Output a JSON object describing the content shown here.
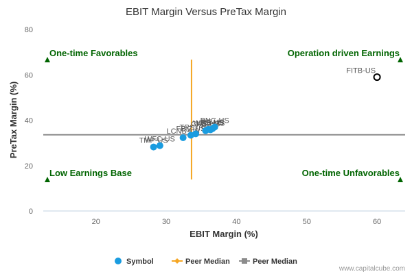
{
  "chart_data": {
    "type": "scatter",
    "title": "EBIT Margin Versus PreTax Margin",
    "xlabel": "EBIT Margin (%)",
    "ylabel": "PreTax Margin (%)",
    "xlim": [
      12.5,
      64
    ],
    "ylim": [
      0,
      80
    ],
    "xticks": [
      20,
      30,
      40,
      50,
      60
    ],
    "yticks": [
      0,
      20,
      40,
      60,
      80
    ],
    "grid": false,
    "points": [
      {
        "label": "TMP-US",
        "x": 28.2,
        "y": 28.2,
        "color": "#1a9ce0"
      },
      {
        "label": "WFC-US",
        "x": 29.1,
        "y": 28.8,
        "color": "#1a9ce0"
      },
      {
        "label": "LCNB-US",
        "x": 32.4,
        "y": 32.3,
        "color": "#1a9ce0"
      },
      {
        "label": "FBIZ-US",
        "x": 33.5,
        "y": 33.4,
        "color": "#1a9ce0"
      },
      {
        "label": "TRST-US",
        "x": 34.2,
        "y": 34.0,
        "color": "#1a9ce0"
      },
      {
        "label": "CNB-US",
        "x": 35.6,
        "y": 35.4,
        "color": "#1a9ce0"
      },
      {
        "label": "WBS-US",
        "x": 36.0,
        "y": 36.0,
        "color": "#1a9ce0"
      },
      {
        "label": "USB-US",
        "x": 36.3,
        "y": 35.8,
        "color": "#1a9ce0"
      },
      {
        "label": "RF-US",
        "x": 36.6,
        "y": 36.3,
        "color": "#1a9ce0"
      },
      {
        "label": "PNC-US",
        "x": 36.9,
        "y": 37.0,
        "color": "#1a9ce0"
      },
      {
        "label": "FITB-US",
        "x": 60.0,
        "y": 59.0,
        "color": "#000000",
        "hollow": true
      }
    ],
    "peer_median_x": 33.6,
    "peer_median_y": 33.6,
    "peer_median_x_color": "#f5a623",
    "peer_median_y_color": "#8c8c8c",
    "quadrants": {
      "top_left": "One-time Favorables",
      "top_right": "Operation driven Earnings",
      "bottom_left": "Low Earnings Base",
      "bottom_right": "One-time Unfavorables"
    },
    "quadrant_color": "#006400",
    "legend": [
      {
        "name": "Symbol",
        "color": "#1a9ce0",
        "marker": "circle"
      },
      {
        "name": "Peer Median",
        "color": "#f5a623",
        "marker": "diamond-line"
      },
      {
        "name": "Peer Median",
        "color": "#8c8c8c",
        "marker": "square-line"
      }
    ],
    "legend_position": "bottom"
  },
  "credit": "www.capitalcube.com"
}
